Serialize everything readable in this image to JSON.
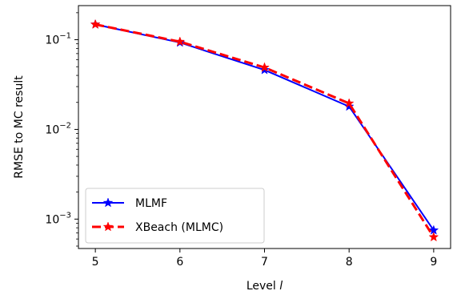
{
  "chart_data": {
    "type": "line",
    "xlabel": "Level l",
    "xlabel_prefix": "Level ",
    "xlabel_var": "l",
    "ylabel": "RMSE to MC result",
    "x": [
      5,
      6,
      7,
      8,
      9
    ],
    "xlim": [
      4.8,
      9.2
    ],
    "ylim": [
      0.00047,
      0.24
    ],
    "yscale": "log",
    "xticks": [
      "5",
      "6",
      "7",
      "8",
      "9"
    ],
    "yticks": [
      {
        "value": 0.1,
        "base": "10",
        "exp": "−1"
      },
      {
        "value": 0.01,
        "base": "10",
        "exp": "−2"
      },
      {
        "value": 0.001,
        "base": "10",
        "exp": "−3"
      }
    ],
    "grid": false,
    "legend_position": "lower-left",
    "series": [
      {
        "name": "MLMF",
        "values": [
          0.148,
          0.093,
          0.046,
          0.018,
          0.00075
        ],
        "color": "#0000ff",
        "linestyle": "solid",
        "marker": "star"
      },
      {
        "name": "XBeach (MLMC)",
        "values": [
          0.148,
          0.095,
          0.049,
          0.0195,
          0.00063
        ],
        "color": "#ff0000",
        "linestyle": "dashed",
        "marker": "star"
      }
    ]
  }
}
